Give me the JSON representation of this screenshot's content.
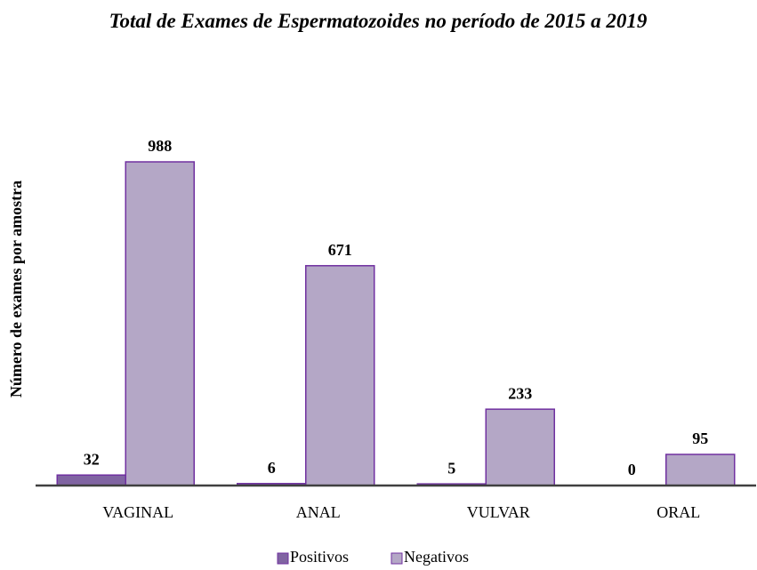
{
  "chart_data": {
    "type": "bar",
    "title": "Total de Exames de Espermatozoides no período de 2015 a 2019",
    "y_label": "Número de exames por amostra",
    "categories": [
      "VAGINAL",
      "ANAL",
      "VULVAR",
      "ORAL"
    ],
    "series": [
      {
        "name": "Positivos",
        "color": "#8064a2",
        "values": [
          32,
          6,
          5,
          0
        ]
      },
      {
        "name": "Negativos",
        "color": "#b4a7c6",
        "values": [
          988,
          671,
          233,
          95
        ]
      }
    ],
    "legend": "bottom"
  }
}
